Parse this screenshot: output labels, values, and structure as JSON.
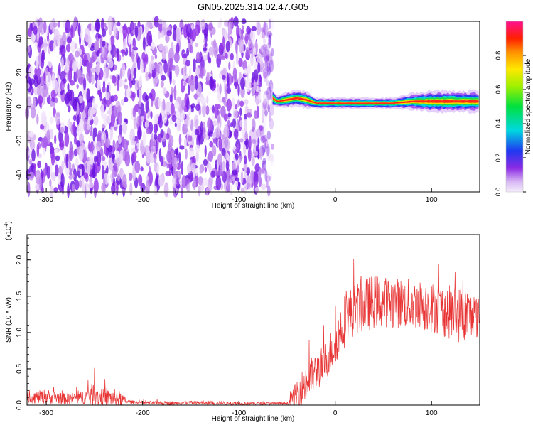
{
  "title": "GN05.2025.314.02.47.G05",
  "chart_data": [
    {
      "type": "heatmap",
      "xlabel": "Height of straight line (km)",
      "ylabel": "Frequency (Hz)",
      "xlim": [
        -320,
        150
      ],
      "ylim": [
        -50,
        50
      ],
      "xticks": [
        -300,
        -200,
        -100,
        0,
        100
      ],
      "yticks": [
        -40,
        -20,
        0,
        20,
        40
      ],
      "noise_region_x": [
        -320,
        -65
      ],
      "signal_band": {
        "x": [
          -65,
          -60,
          -50,
          -40,
          -30,
          -20,
          -10,
          0,
          20,
          40,
          60,
          80,
          100,
          120,
          150
        ],
        "center_hz": [
          5,
          3,
          4,
          5,
          4,
          2,
          2,
          2,
          2,
          2,
          2,
          3,
          3,
          3,
          3
        ],
        "halfwidth_hz": [
          3,
          2,
          3,
          3,
          3,
          2,
          2,
          2,
          2,
          2,
          2,
          3,
          4,
          4,
          4
        ]
      },
      "colorbar": {
        "label": "Normalized spectral amplitude",
        "range": [
          0,
          1
        ],
        "ticks": [
          "0.0",
          "0.2",
          "0.4",
          "0.6",
          "0.8"
        ],
        "tick_values": [
          0,
          0.2,
          0.4,
          0.6,
          0.8
        ]
      }
    },
    {
      "type": "line",
      "xlabel": "Height of straight line (km)",
      "ylabel": "SNR (10 * v/v)",
      "multiplier_label": "(x10",
      "multiplier_exponent": "4",
      "xlim": [
        -320,
        150
      ],
      "ylim": [
        0,
        2.35
      ],
      "xticks": [
        -300,
        -200,
        -100,
        0,
        100
      ],
      "yticks": [
        "0.0",
        "0.5",
        "1.0",
        "1.5",
        "2.0"
      ],
      "ytick_values": [
        0,
        0.5,
        1.0,
        1.5,
        2.0
      ],
      "color": "#e83434",
      "envelope": {
        "x": [
          -320,
          -300,
          -280,
          -260,
          -250,
          -240,
          -225,
          -215,
          -200,
          -175,
          -150,
          -100,
          -70,
          -50,
          -45,
          -40,
          -30,
          -20,
          -10,
          0,
          5,
          10,
          20,
          30,
          40,
          50,
          60,
          80,
          100,
          120,
          135,
          150
        ],
        "base": [
          0.08,
          0.1,
          0.07,
          0.09,
          0.12,
          0.08,
          0.07,
          0.04,
          0.03,
          0.02,
          0.03,
          0.02,
          0.02,
          0.02,
          0.05,
          0.12,
          0.25,
          0.4,
          0.55,
          0.8,
          0.95,
          1.1,
          1.25,
          1.3,
          1.35,
          1.35,
          1.35,
          1.32,
          1.28,
          1.2,
          1.15,
          1.15
        ],
        "amp": [
          0.15,
          0.2,
          0.15,
          0.2,
          0.35,
          0.22,
          0.25,
          0.05,
          0.04,
          0.06,
          0.05,
          0.05,
          0.04,
          0.04,
          0.2,
          0.4,
          0.55,
          0.55,
          0.55,
          0.6,
          0.7,
          0.75,
          0.7,
          0.75,
          0.75,
          0.7,
          0.7,
          0.7,
          0.7,
          0.75,
          0.8,
          0.55
        ]
      }
    }
  ]
}
